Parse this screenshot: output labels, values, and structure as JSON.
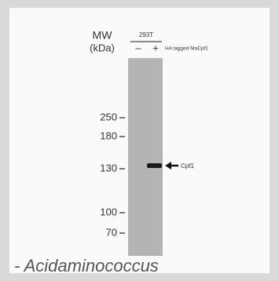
{
  "header": {
    "mw": "MW",
    "unit": "(kDa)",
    "cell_line": "293T",
    "lane_minus": "–",
    "lane_plus": "+",
    "construct": "HA tagged MaCpf1"
  },
  "markers": [
    "250",
    "180",
    "130",
    "100",
    "70"
  ],
  "band_label": "Cpf1",
  "caption": "- Acidaminococcus"
}
